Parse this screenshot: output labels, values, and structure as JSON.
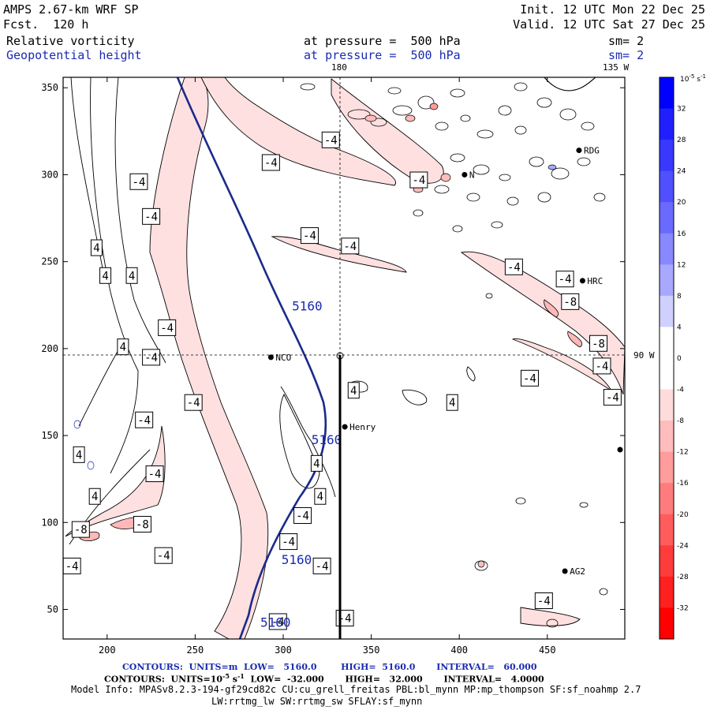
{
  "header": {
    "model": "AMPS 2.67-km WRF SP",
    "fcst_label": "Fcst.",
    "fcst_value": "120 h",
    "init": "Init. 12 UTC Mon 22 Dec 25",
    "valid": "Valid. 12 UTC Sat 27 Dec 25",
    "field1": "Relative vorticity",
    "field2": "Geopotential height",
    "pressure1": "at pressure =  500 hPa",
    "pressure2": "at pressure =  500 hPa",
    "sm1": "sm= 2",
    "sm2": "sm= 2"
  },
  "map_labels": {
    "lon180": "180",
    "lon135": "135 W",
    "lat90": "90 W"
  },
  "stations": [
    {
      "name": "NCO",
      "x": 293,
      "y": 195
    },
    {
      "name": "Henry",
      "x": 335,
      "y": 155
    },
    {
      "name": "RDG",
      "x": 468,
      "y": 314
    },
    {
      "name": "HRC",
      "x": 470,
      "y": 239
    },
    {
      "name": "AG2",
      "x": 460,
      "y": 72
    },
    {
      "name": "N",
      "x": 403,
      "y": 300
    }
  ],
  "colorbar": {
    "unit_label": "10",
    "unit_exp": "-5",
    "unit_suffix": " s",
    "unit_exp2": "-1",
    "ticks": [
      "32",
      "28",
      "24",
      "20",
      "16",
      "12",
      "8",
      "4",
      "0",
      "-4",
      "-8",
      "-12",
      "-16",
      "-20",
      "-24",
      "-28",
      "-32"
    ],
    "colors": [
      "#0000ff",
      "#2020ff",
      "#3838ff",
      "#5050ff",
      "#6a6aff",
      "#8888ff",
      "#a8a8ff",
      "#d0d0ff",
      "#ffffff",
      "#ffffff",
      "#ffdcdc",
      "#ffbcbc",
      "#ff9c9c",
      "#ff7c7c",
      "#ff5c5c",
      "#ff3c3c",
      "#ff2020",
      "#ff0000"
    ]
  },
  "footer": {
    "line1": "CONTOURS:  UNITS=m  LOW=   5160.0        HIGH=  5160.0       INTERVAL=   60.000",
    "line2_a": "CONTOURS:  UNITS=10",
    "line2_exp": "-5",
    "line2_b": " s",
    "line2_exp2": "-1",
    "line2_c": "  LOW=  -32.000       HIGH=   32.000       INTERVAL=   4.0000",
    "line3": "Model Info: MPASv8.2.3-194-gf29cd82c CU:cu_grell_freitas PBL:bl_mynn MP:mp_thompson SF:sf_noahmp 2.7",
    "line4": "LW:rrtmg_lw SW:rrtmg_sw SFLAY:sf_mynn"
  },
  "chart_data": {
    "type": "contour",
    "xlim": [
      175,
      494
    ],
    "ylim": [
      33,
      356
    ],
    "x_ticks": [
      200,
      250,
      300,
      350,
      400,
      450
    ],
    "y_ticks": [
      50,
      100,
      150,
      200,
      250,
      300,
      350
    ],
    "grid": "dashed crosshair at x=334, y=195",
    "height_contour": {
      "value": "5160",
      "units": "m"
    },
    "vorticity_labels": [
      {
        "v": "-4",
        "x": 327,
        "y": 320
      },
      {
        "v": "-4",
        "x": 293,
        "y": 307
      },
      {
        "v": "-4",
        "x": 218,
        "y": 296
      },
      {
        "v": "-4",
        "x": 225,
        "y": 276
      },
      {
        "v": "-4",
        "x": 315,
        "y": 265
      },
      {
        "v": "-4",
        "x": 338,
        "y": 259
      },
      {
        "v": "-4",
        "x": 377,
        "y": 297
      },
      {
        "v": "-4",
        "x": 431,
        "y": 247
      },
      {
        "v": "-4",
        "x": 460,
        "y": 240
      },
      {
        "v": "-8",
        "x": 463,
        "y": 227
      },
      {
        "v": "-8",
        "x": 479,
        "y": 203
      },
      {
        "v": "-4",
        "x": 481,
        "y": 190
      },
      {
        "v": "-4",
        "x": 487,
        "y": 172
      },
      {
        "v": "-4",
        "x": 234,
        "y": 212
      },
      {
        "v": "-4",
        "x": 225,
        "y": 195
      },
      {
        "v": "-4",
        "x": 249,
        "y": 169
      },
      {
        "v": "-4",
        "x": 221,
        "y": 159
      },
      {
        "v": "-4",
        "x": 227,
        "y": 128
      },
      {
        "v": "-4",
        "x": 311,
        "y": 104
      },
      {
        "v": "-4",
        "x": 303,
        "y": 89
      },
      {
        "v": "-4",
        "x": 232,
        "y": 81
      },
      {
        "v": "-4",
        "x": 180,
        "y": 75
      },
      {
        "v": "-8",
        "x": 185,
        "y": 96
      },
      {
        "v": "-8",
        "x": 220,
        "y": 99
      },
      {
        "v": "-4",
        "x": 322,
        "y": 75
      },
      {
        "v": "-4",
        "x": 297,
        "y": 43
      },
      {
        "v": "-4",
        "x": 335,
        "y": 45
      },
      {
        "v": "-4",
        "x": 448,
        "y": 55
      },
      {
        "v": "-4",
        "x": 440,
        "y": 183
      },
      {
        "v": "4",
        "x": 194,
        "y": 258
      },
      {
        "v": "4",
        "x": 199,
        "y": 242
      },
      {
        "v": "4",
        "x": 214,
        "y": 242
      },
      {
        "v": "4",
        "x": 209,
        "y": 201
      },
      {
        "v": "4",
        "x": 184,
        "y": 139
      },
      {
        "v": "4",
        "x": 193,
        "y": 115
      },
      {
        "v": "4",
        "x": 340,
        "y": 176
      },
      {
        "v": "4",
        "x": 396,
        "y": 169
      },
      {
        "v": "4",
        "x": 319,
        "y": 134
      },
      {
        "v": "4",
        "x": 321,
        "y": 115
      }
    ],
    "height_labels": [
      {
        "v": "5160",
        "x": 305,
        "y": 222
      },
      {
        "v": "5160",
        "x": 316,
        "y": 145
      },
      {
        "v": "5160",
        "x": 299,
        "y": 76
      },
      {
        "v": "5160",
        "x": 287,
        "y": 40
      }
    ]
  }
}
